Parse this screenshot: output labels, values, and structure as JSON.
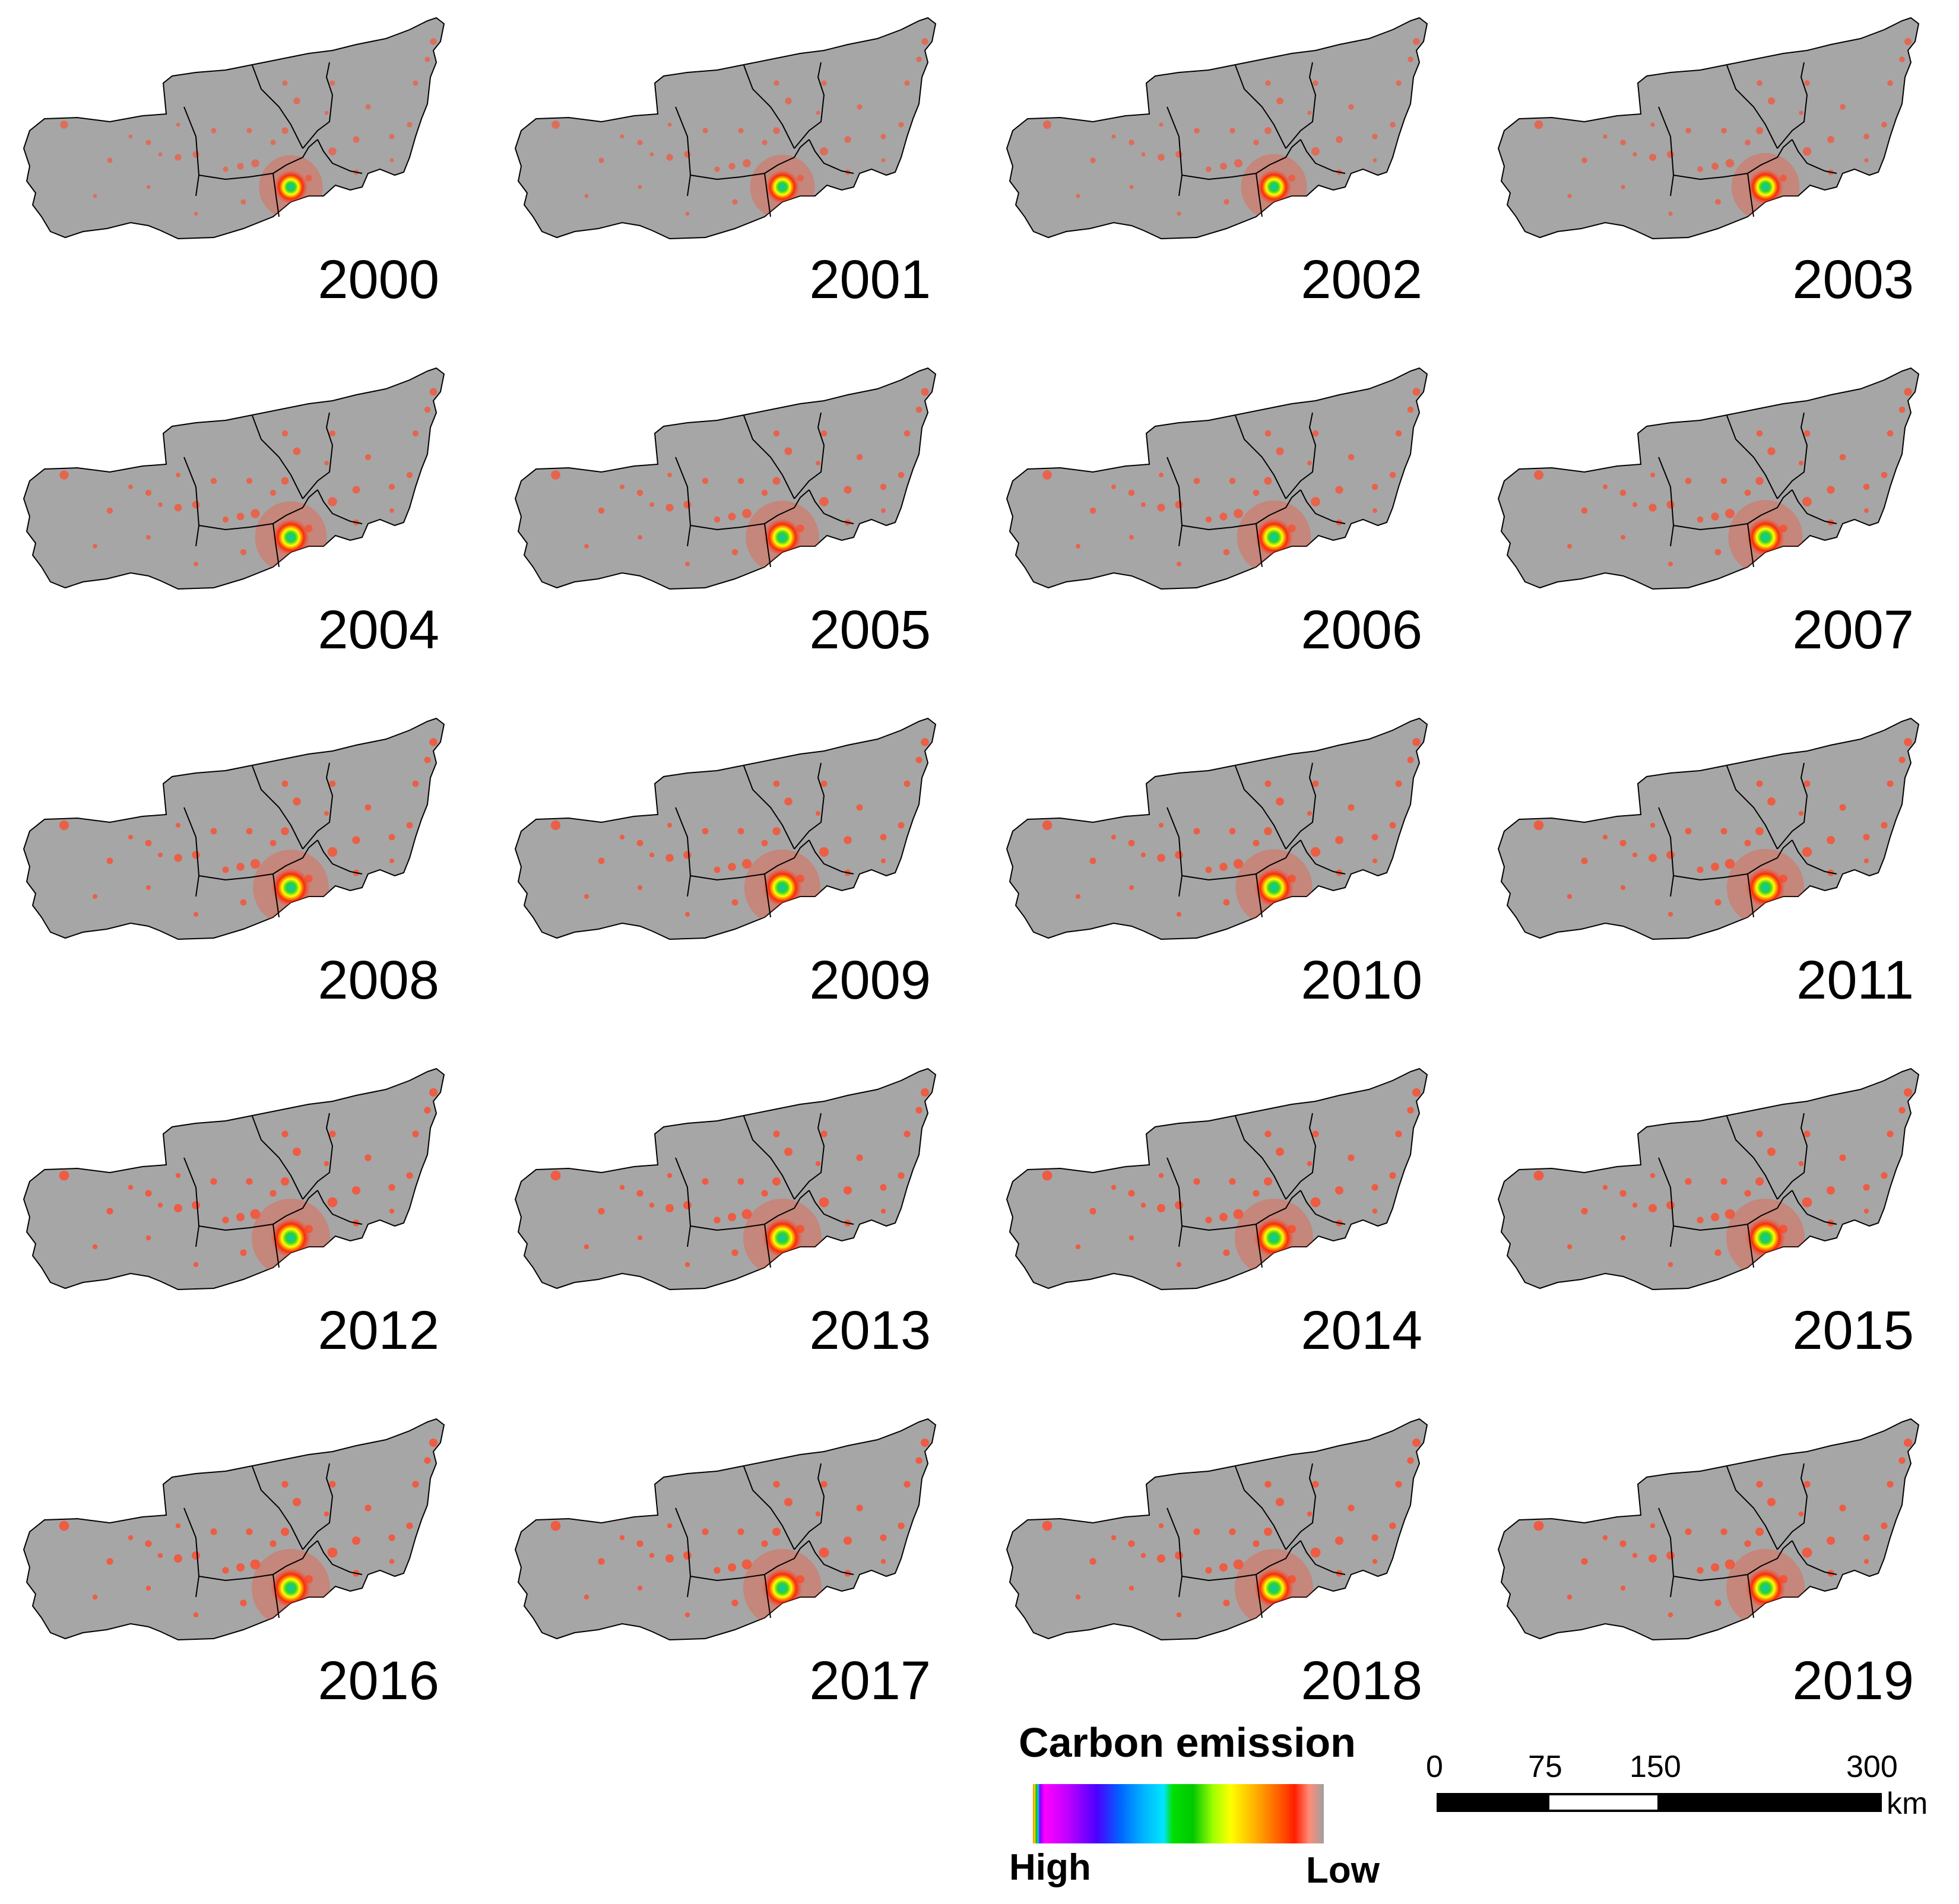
{
  "panels": [
    {
      "year": "2000",
      "intensity": 0.55
    },
    {
      "year": "2001",
      "intensity": 0.58
    },
    {
      "year": "2002",
      "intensity": 0.62
    },
    {
      "year": "2003",
      "intensity": 0.68
    },
    {
      "year": "2004",
      "intensity": 0.8
    },
    {
      "year": "2005",
      "intensity": 0.84
    },
    {
      "year": "2006",
      "intensity": 0.86
    },
    {
      "year": "2007",
      "intensity": 0.88
    },
    {
      "year": "2008",
      "intensity": 0.92
    },
    {
      "year": "2009",
      "intensity": 0.93
    },
    {
      "year": "2010",
      "intensity": 0.95
    },
    {
      "year": "2011",
      "intensity": 0.97
    },
    {
      "year": "2012",
      "intensity": 1.0
    },
    {
      "year": "2013",
      "intensity": 1.0
    },
    {
      "year": "2014",
      "intensity": 1.0
    },
    {
      "year": "2015",
      "intensity": 1.0
    },
    {
      "year": "2016",
      "intensity": 1.0
    },
    {
      "year": "2017",
      "intensity": 1.0
    },
    {
      "year": "2018",
      "intensity": 1.0
    },
    {
      "year": "2019",
      "intensity": 1.0
    }
  ],
  "legend": {
    "title": "Carbon emission",
    "high_label": "High",
    "low_label": "Low"
  },
  "scale_bar": {
    "ticks": [
      "0",
      "75",
      "150",
      "300"
    ],
    "unit": "km"
  },
  "colors": {
    "land": "#a6a6a6",
    "boundary": "#000000",
    "emission_low": "#ff4a2a",
    "emission_high": "#00c8c8"
  }
}
